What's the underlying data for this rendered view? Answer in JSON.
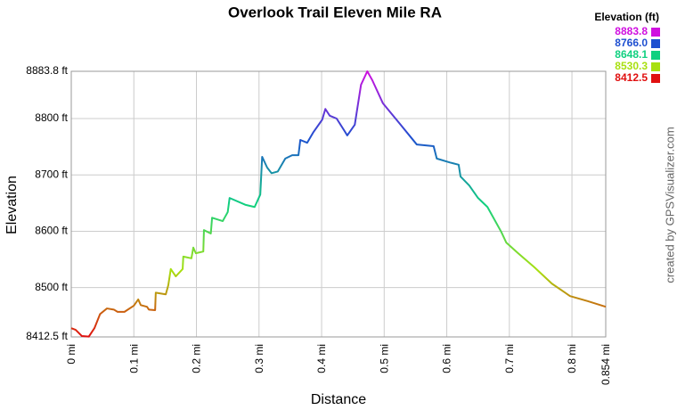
{
  "chart_data": {
    "type": "line",
    "title": "Overlook Trail Eleven Mile RA",
    "xlabel": "Distance",
    "ylabel": "Elevation",
    "credit": "created by GPSVisualizer.com",
    "legend_title": "Elevation (ft)",
    "legend": [
      {
        "value": 8883.8,
        "color": "#d010e0"
      },
      {
        "value": 8766,
        "label": "8766.0",
        "color": "#1e4fd0"
      },
      {
        "value": 8648.1,
        "color": "#10d080"
      },
      {
        "value": 8530.3,
        "color": "#a8e010"
      },
      {
        "value": 8412.5,
        "color": "#e01010"
      }
    ],
    "xlim": [
      0,
      0.854
    ],
    "ylim": [
      8412.5,
      8883.8
    ],
    "xticks": [
      {
        "value": 0,
        "label": "0 mi"
      },
      {
        "value": 0.1,
        "label": "0.1 mi"
      },
      {
        "value": 0.2,
        "label": "0.2 mi"
      },
      {
        "value": 0.3,
        "label": "0.3 mi"
      },
      {
        "value": 0.4,
        "label": "0.4 mi"
      },
      {
        "value": 0.5,
        "label": "0.5 mi"
      },
      {
        "value": 0.6,
        "label": "0.6 mi"
      },
      {
        "value": 0.7,
        "label": "0.7 mi"
      },
      {
        "value": 0.8,
        "label": "0.8 mi"
      },
      {
        "value": 0.854,
        "label": "0.854 mi"
      }
    ],
    "yticks": [
      {
        "value": 8412.5,
        "label": "8412.5 ft"
      },
      {
        "value": 8500,
        "label": "8500 ft"
      },
      {
        "value": 8600,
        "label": "8600 ft"
      },
      {
        "value": 8700,
        "label": "8700 ft"
      },
      {
        "value": 8800,
        "label": "8800 ft"
      },
      {
        "value": 8883.8,
        "label": "8883.8 ft"
      }
    ],
    "grid": true,
    "series": [
      {
        "name": "Elevation",
        "x": [
          0,
          0.007,
          0.017,
          0.028,
          0.037,
          0.046,
          0.057,
          0.068,
          0.074,
          0.085,
          0.1,
          0.107,
          0.111,
          0.121,
          0.124,
          0.134,
          0.135,
          0.151,
          0.155,
          0.159,
          0.167,
          0.178,
          0.179,
          0.192,
          0.195,
          0.199,
          0.211,
          0.212,
          0.223,
          0.225,
          0.242,
          0.25,
          0.253,
          0.278,
          0.293,
          0.302,
          0.305,
          0.313,
          0.32,
          0.33,
          0.342,
          0.353,
          0.363,
          0.366,
          0.377,
          0.387,
          0.401,
          0.406,
          0.413,
          0.424,
          0.436,
          0.441,
          0.453,
          0.463,
          0.473,
          0.481,
          0.498,
          0.524,
          0.552,
          0.579,
          0.584,
          0.605,
          0.619,
          0.622,
          0.636,
          0.65,
          0.665,
          0.687,
          0.695,
          0.714,
          0.74,
          0.768,
          0.797,
          0.825,
          0.854
        ],
        "values": [
          8428,
          8425,
          8414,
          8413,
          8428,
          8453,
          8463,
          8461,
          8457,
          8457,
          8468,
          8479,
          8469,
          8466,
          8461,
          8460,
          8491,
          8488,
          8504,
          8533,
          8520,
          8533,
          8555,
          8552,
          8571,
          8561,
          8564,
          8602,
          8596,
          8624,
          8618,
          8634,
          8659,
          8647,
          8643,
          8665,
          8732,
          8713,
          8703,
          8706,
          8729,
          8735,
          8735,
          8762,
          8757,
          8776,
          8798,
          8817,
          8805,
          8800,
          8779,
          8770,
          8789,
          8860,
          8883.8,
          8868,
          8827,
          8792,
          8754,
          8751,
          8729,
          8722,
          8718,
          8697,
          8681,
          8659,
          8643,
          8599,
          8580,
          8561,
          8536,
          8507,
          8485,
          8476,
          8466
        ]
      }
    ]
  }
}
